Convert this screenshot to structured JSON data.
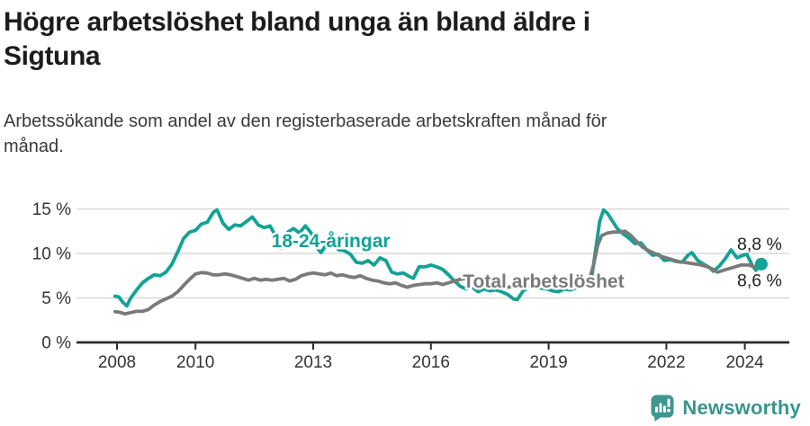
{
  "header": {
    "title_lines": [
      "Högre arbetslöshet bland unga än bland äldre i",
      "Sigtuna"
    ],
    "subtitle_lines": [
      "Arbetssökande som andel av den registerbaserade arbetskraften månad för",
      "månad."
    ]
  },
  "footer": {
    "brand_name": "Newsworthy",
    "logo_icon": "newsworthy-chart-bubble-icon"
  },
  "colors": {
    "young_line": "#12a296",
    "total_line": "#7a7a7a",
    "grid": "#d9d9d9",
    "axis": "#2b2b2b",
    "tick_text": "#333333",
    "value_label_text": "#222222",
    "brand_teal": "#3a948d"
  },
  "chart_data": {
    "type": "line",
    "title": "Högre arbetslöshet bland unga än bland äldre i Sigtuna",
    "subtitle": "Arbetssökande som andel av den registerbaserade arbetskraften månad för månad.",
    "unit": "%",
    "grid": "horizontal",
    "legend": "inline-labels",
    "xlim": [
      2007.9,
      2024.8
    ],
    "ylim": [
      0,
      16.2
    ],
    "x_ticks": [
      2008,
      2010,
      2013,
      2016,
      2019,
      2022,
      2024
    ],
    "y_ticks": [
      0,
      5,
      10,
      15
    ],
    "y_tick_labels": [
      "0 %",
      "5 %",
      "10 %",
      "15 %"
    ],
    "series": [
      {
        "name": "18-24-åringar",
        "slug": "18-24-aringar",
        "color": "#12a296",
        "label_pos": {
          "x": 2013.45,
          "y": 10.7
        },
        "end_label": "8,8 %",
        "end_dot": true,
        "points": [
          [
            2007.95,
            5.2
          ],
          [
            2008.05,
            5.1
          ],
          [
            2008.15,
            4.5
          ],
          [
            2008.25,
            4.1
          ],
          [
            2008.35,
            5.0
          ],
          [
            2008.5,
            5.9
          ],
          [
            2008.65,
            6.7
          ],
          [
            2008.8,
            7.2
          ],
          [
            2008.95,
            7.6
          ],
          [
            2009.1,
            7.5
          ],
          [
            2009.25,
            7.9
          ],
          [
            2009.4,
            8.8
          ],
          [
            2009.55,
            10.2
          ],
          [
            2009.7,
            11.7
          ],
          [
            2009.85,
            12.4
          ],
          [
            2010.0,
            12.6
          ],
          [
            2010.15,
            13.3
          ],
          [
            2010.3,
            13.5
          ],
          [
            2010.45,
            14.6
          ],
          [
            2010.55,
            14.9
          ],
          [
            2010.7,
            13.4
          ],
          [
            2010.85,
            12.7
          ],
          [
            2011.0,
            13.2
          ],
          [
            2011.15,
            13.1
          ],
          [
            2011.3,
            13.6
          ],
          [
            2011.45,
            14.1
          ],
          [
            2011.6,
            13.2
          ],
          [
            2011.75,
            12.9
          ],
          [
            2011.9,
            13.1
          ],
          [
            2012.05,
            11.9
          ],
          [
            2012.2,
            10.6
          ],
          [
            2012.35,
            12.4
          ],
          [
            2012.5,
            12.8
          ],
          [
            2012.65,
            12.3
          ],
          [
            2012.8,
            13.1
          ],
          [
            2012.95,
            12.3
          ],
          [
            2013.1,
            10.6
          ],
          [
            2013.2,
            10.1
          ],
          [
            2013.35,
            11.1
          ],
          [
            2013.5,
            11.2
          ],
          [
            2013.65,
            10.4
          ],
          [
            2013.8,
            10.3
          ],
          [
            2013.95,
            9.9
          ],
          [
            2014.1,
            9.0
          ],
          [
            2014.25,
            8.9
          ],
          [
            2014.4,
            9.2
          ],
          [
            2014.55,
            8.7
          ],
          [
            2014.7,
            9.5
          ],
          [
            2014.85,
            9.2
          ],
          [
            2015.0,
            7.9
          ],
          [
            2015.15,
            7.7
          ],
          [
            2015.3,
            7.8
          ],
          [
            2015.45,
            7.4
          ],
          [
            2015.55,
            7.2
          ],
          [
            2015.7,
            8.5
          ],
          [
            2015.85,
            8.5
          ],
          [
            2016.0,
            8.7
          ],
          [
            2016.15,
            8.5
          ],
          [
            2016.3,
            8.2
          ],
          [
            2016.45,
            7.6
          ],
          [
            2016.6,
            6.9
          ],
          [
            2016.75,
            6.3
          ],
          [
            2016.9,
            6.0
          ],
          [
            2017.05,
            6.2
          ],
          [
            2017.2,
            5.7
          ],
          [
            2017.35,
            6.0
          ],
          [
            2017.5,
            5.8
          ],
          [
            2017.65,
            5.9
          ],
          [
            2017.8,
            5.7
          ],
          [
            2017.95,
            5.4
          ],
          [
            2018.1,
            4.9
          ],
          [
            2018.2,
            4.8
          ],
          [
            2018.35,
            5.8
          ],
          [
            2018.5,
            6.2
          ],
          [
            2018.65,
            6.3
          ],
          [
            2018.8,
            6.1
          ],
          [
            2018.95,
            6.0
          ],
          [
            2019.1,
            5.8
          ],
          [
            2019.25,
            5.7
          ],
          [
            2019.4,
            6.0
          ],
          [
            2019.55,
            5.9
          ],
          [
            2019.7,
            6.1
          ],
          [
            2019.85,
            6.3
          ],
          [
            2020.0,
            6.6
          ],
          [
            2020.1,
            7.4
          ],
          [
            2020.2,
            10.5
          ],
          [
            2020.3,
            13.6
          ],
          [
            2020.4,
            14.9
          ],
          [
            2020.5,
            14.5
          ],
          [
            2020.6,
            13.8
          ],
          [
            2020.75,
            12.8
          ],
          [
            2020.9,
            12.2
          ],
          [
            2021.05,
            11.7
          ],
          [
            2021.2,
            11.1
          ],
          [
            2021.35,
            11.2
          ],
          [
            2021.5,
            10.4
          ],
          [
            2021.65,
            9.8
          ],
          [
            2021.8,
            9.9
          ],
          [
            2021.95,
            9.2
          ],
          [
            2022.1,
            9.3
          ],
          [
            2022.25,
            9.1
          ],
          [
            2022.4,
            9.0
          ],
          [
            2022.55,
            9.8
          ],
          [
            2022.65,
            10.1
          ],
          [
            2022.8,
            9.2
          ],
          [
            2022.95,
            8.8
          ],
          [
            2023.1,
            8.4
          ],
          [
            2023.2,
            8.0
          ],
          [
            2023.35,
            8.6
          ],
          [
            2023.5,
            9.4
          ],
          [
            2023.65,
            10.4
          ],
          [
            2023.8,
            9.5
          ],
          [
            2023.95,
            9.8
          ],
          [
            2024.05,
            9.9
          ],
          [
            2024.2,
            8.6
          ],
          [
            2024.28,
            8.1
          ],
          [
            2024.42,
            8.8
          ]
        ]
      },
      {
        "name": "Total arbetslöshet",
        "slug": "total-arbetsloshet",
        "color": "#7a7a7a",
        "label_pos": {
          "x": 2018.87,
          "y": 6.16
        },
        "end_label": "8,6 %",
        "end_dot": false,
        "points": [
          [
            2007.95,
            3.45
          ],
          [
            2008.1,
            3.35
          ],
          [
            2008.2,
            3.2
          ],
          [
            2008.35,
            3.35
          ],
          [
            2008.5,
            3.5
          ],
          [
            2008.65,
            3.5
          ],
          [
            2008.8,
            3.7
          ],
          [
            2008.95,
            4.2
          ],
          [
            2009.1,
            4.6
          ],
          [
            2009.25,
            4.9
          ],
          [
            2009.4,
            5.2
          ],
          [
            2009.55,
            5.7
          ],
          [
            2009.7,
            6.4
          ],
          [
            2009.85,
            7.1
          ],
          [
            2010.0,
            7.7
          ],
          [
            2010.15,
            7.85
          ],
          [
            2010.3,
            7.8
          ],
          [
            2010.45,
            7.6
          ],
          [
            2010.6,
            7.6
          ],
          [
            2010.75,
            7.7
          ],
          [
            2010.9,
            7.6
          ],
          [
            2011.05,
            7.4
          ],
          [
            2011.2,
            7.2
          ],
          [
            2011.35,
            7.0
          ],
          [
            2011.5,
            7.2
          ],
          [
            2011.65,
            7.0
          ],
          [
            2011.8,
            7.1
          ],
          [
            2011.95,
            7.0
          ],
          [
            2012.1,
            7.1
          ],
          [
            2012.25,
            7.2
          ],
          [
            2012.4,
            6.9
          ],
          [
            2012.55,
            7.1
          ],
          [
            2012.7,
            7.5
          ],
          [
            2012.85,
            7.7
          ],
          [
            2013.0,
            7.8
          ],
          [
            2013.15,
            7.7
          ],
          [
            2013.3,
            7.6
          ],
          [
            2013.45,
            7.8
          ],
          [
            2013.6,
            7.5
          ],
          [
            2013.75,
            7.6
          ],
          [
            2013.9,
            7.4
          ],
          [
            2014.05,
            7.3
          ],
          [
            2014.2,
            7.5
          ],
          [
            2014.35,
            7.2
          ],
          [
            2014.5,
            7.0
          ],
          [
            2014.65,
            6.9
          ],
          [
            2014.8,
            6.7
          ],
          [
            2014.95,
            6.6
          ],
          [
            2015.1,
            6.7
          ],
          [
            2015.25,
            6.4
          ],
          [
            2015.4,
            6.2
          ],
          [
            2015.55,
            6.4
          ],
          [
            2015.7,
            6.5
          ],
          [
            2015.85,
            6.6
          ],
          [
            2016.0,
            6.6
          ],
          [
            2016.15,
            6.7
          ],
          [
            2016.3,
            6.5
          ],
          [
            2016.45,
            6.7
          ],
          [
            2016.6,
            6.9
          ],
          [
            2016.75,
            7.1
          ],
          [
            2016.9,
            7.2
          ],
          [
            2017.05,
            7.0
          ],
          [
            2017.2,
            6.9
          ],
          [
            2017.35,
            6.7
          ],
          [
            2017.5,
            6.6
          ],
          [
            2017.65,
            6.4
          ],
          [
            2017.8,
            6.3
          ],
          [
            2017.95,
            6.2
          ],
          [
            2018.1,
            6.3
          ],
          [
            2018.25,
            6.4
          ],
          [
            2018.4,
            6.3
          ],
          [
            2018.55,
            6.2
          ],
          [
            2018.7,
            6.3
          ],
          [
            2018.85,
            6.3
          ],
          [
            2019.0,
            6.4
          ],
          [
            2019.15,
            6.3
          ],
          [
            2019.3,
            6.4
          ],
          [
            2019.45,
            6.5
          ],
          [
            2019.6,
            6.6
          ],
          [
            2019.75,
            6.7
          ],
          [
            2019.9,
            6.9
          ],
          [
            2020.05,
            7.2
          ],
          [
            2020.15,
            8.8
          ],
          [
            2020.25,
            10.9
          ],
          [
            2020.35,
            12.0
          ],
          [
            2020.5,
            12.3
          ],
          [
            2020.65,
            12.4
          ],
          [
            2020.8,
            12.4
          ],
          [
            2020.95,
            12.5
          ],
          [
            2021.1,
            12.0
          ],
          [
            2021.25,
            11.3
          ],
          [
            2021.4,
            10.7
          ],
          [
            2021.55,
            10.3
          ],
          [
            2021.7,
            10.0
          ],
          [
            2021.85,
            9.7
          ],
          [
            2022.0,
            9.5
          ],
          [
            2022.15,
            9.3
          ],
          [
            2022.3,
            9.1
          ],
          [
            2022.45,
            9.0
          ],
          [
            2022.6,
            8.9
          ],
          [
            2022.75,
            8.8
          ],
          [
            2022.9,
            8.7
          ],
          [
            2023.05,
            8.5
          ],
          [
            2023.2,
            8.2
          ],
          [
            2023.3,
            7.9
          ],
          [
            2023.45,
            8.1
          ],
          [
            2023.6,
            8.3
          ],
          [
            2023.75,
            8.5
          ],
          [
            2023.9,
            8.7
          ],
          [
            2024.1,
            8.7
          ],
          [
            2024.25,
            8.5
          ],
          [
            2024.45,
            8.6
          ]
        ]
      }
    ]
  }
}
